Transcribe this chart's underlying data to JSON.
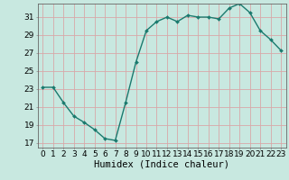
{
  "x": [
    0,
    1,
    2,
    3,
    4,
    5,
    6,
    7,
    8,
    9,
    10,
    11,
    12,
    13,
    14,
    15,
    16,
    17,
    18,
    19,
    20,
    21,
    22,
    23
  ],
  "y": [
    23.2,
    23.2,
    21.5,
    20.0,
    19.3,
    18.5,
    17.5,
    17.3,
    21.5,
    26.0,
    29.5,
    30.5,
    31.0,
    30.5,
    31.2,
    31.0,
    31.0,
    30.8,
    32.0,
    32.5,
    31.5,
    29.5,
    28.5,
    27.3
  ],
  "line_color": "#1a7a6e",
  "marker": "D",
  "marker_size": 2,
  "bg_color": "#c8e8e0",
  "plot_bg_color": "#c8e8e0",
  "grid_color": "#d8a8a8",
  "axis_color": "#666666",
  "xlabel": "Humidex (Indice chaleur)",
  "xlim": [
    -0.5,
    23.5
  ],
  "ylim": [
    16.5,
    32.5
  ],
  "yticks": [
    17,
    19,
    21,
    23,
    25,
    27,
    29,
    31
  ],
  "xticks": [
    0,
    1,
    2,
    3,
    4,
    5,
    6,
    7,
    8,
    9,
    10,
    11,
    12,
    13,
    14,
    15,
    16,
    17,
    18,
    19,
    20,
    21,
    22,
    23
  ],
  "xlabel_fontsize": 7.5,
  "tick_fontsize": 6.5,
  "linewidth": 1.0
}
